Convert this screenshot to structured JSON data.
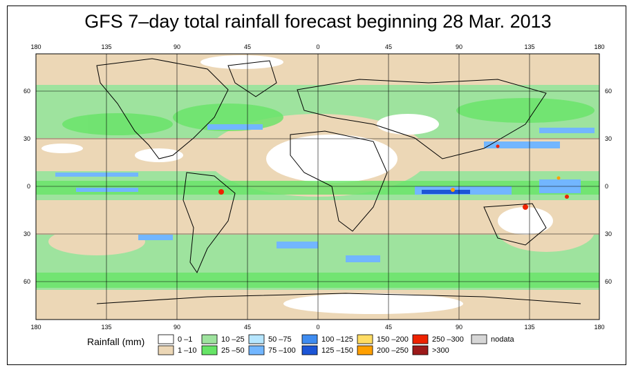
{
  "title": "GFS 7–day total rainfall forecast beginning 28 Mar. 2013",
  "axes": {
    "lon_ticks_top": [
      "180",
      "135",
      "90",
      "45",
      "0",
      "45",
      "90",
      "135",
      "180"
    ],
    "lon_ticks_bottom": [
      "180",
      "135",
      "90",
      "45",
      "0",
      "45",
      "90",
      "135",
      "180"
    ],
    "lat_ticks_left": [
      "60",
      "30",
      "0",
      "30",
      "60"
    ],
    "lat_ticks_right": [
      "60",
      "30",
      "0",
      "30",
      "60"
    ]
  },
  "legend": {
    "title": "Rainfall (mm)",
    "items": [
      {
        "label": "0 –1",
        "color": "#ffffff"
      },
      {
        "label": "1 –10",
        "color": "#ecd7b6"
      },
      {
        "label": "10 –25",
        "color": "#9ee39e"
      },
      {
        "label": "25 –50",
        "color": "#66e466"
      },
      {
        "label": "50 –75",
        "color": "#b6e6ff"
      },
      {
        "label": "75 –100",
        "color": "#72b6ff"
      },
      {
        "label": "100 –125",
        "color": "#3f8cf0"
      },
      {
        "label": "125 –150",
        "color": "#1c55d6"
      },
      {
        "label": "150 –200",
        "color": "#ffdc64"
      },
      {
        "label": "200 –250",
        "color": "#ffa000"
      },
      {
        "label": "250 –300",
        "color": "#ee2200"
      },
      {
        "label": ">300",
        "color": "#9c1a1a"
      },
      {
        "label": "nodata",
        "color": "#d6d6d6"
      }
    ]
  },
  "colors": {
    "ocean_base": "#9ee39e",
    "dry": "#ecd7b6",
    "none": "#ffffff",
    "heavy": "#66e466",
    "blue_band": "#72b6ff",
    "deep_blue": "#1c55d6",
    "red": "#ee2200",
    "orange": "#ffa000"
  }
}
